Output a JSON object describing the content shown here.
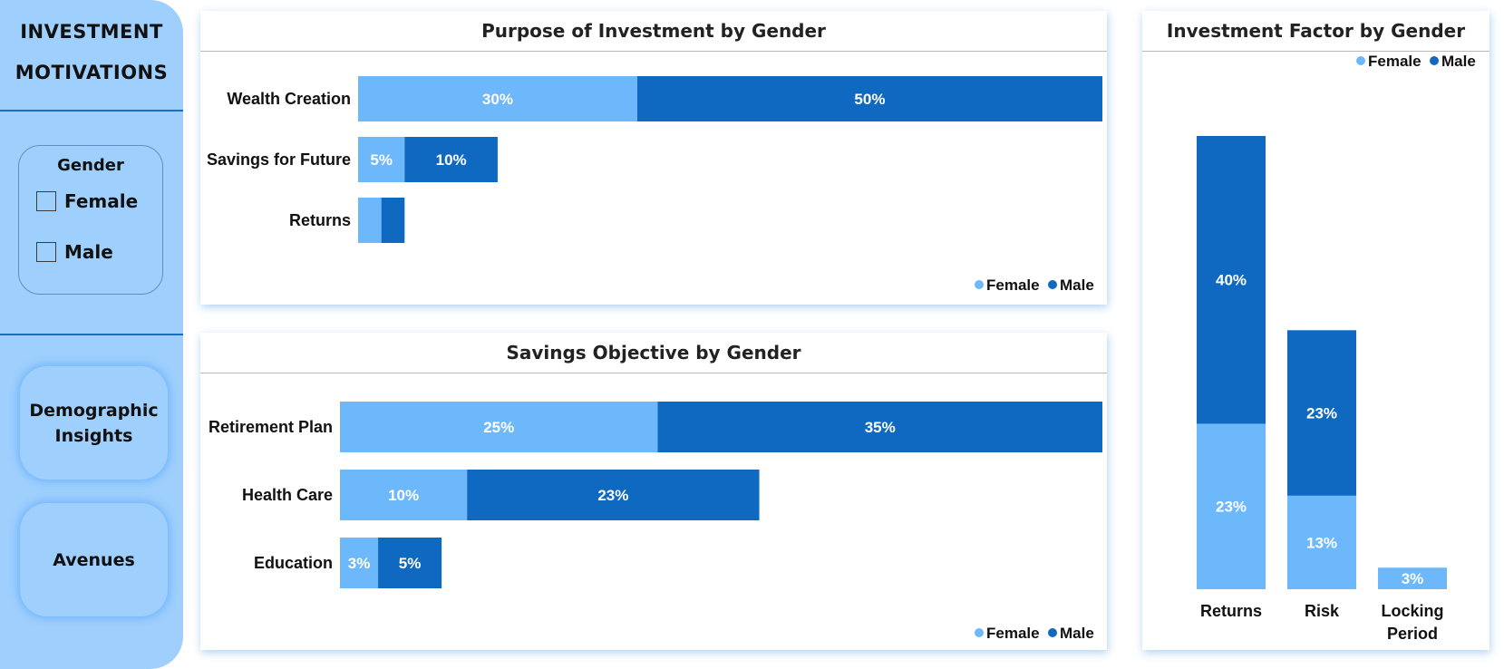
{
  "sidebar": {
    "title_line1": "INVESTMENT",
    "title_line2": "MOTIVATIONS",
    "slicer": {
      "title": "Gender",
      "options": [
        {
          "label": "Female",
          "checked": false
        },
        {
          "label": "Male",
          "checked": false
        }
      ]
    },
    "nav_buttons": [
      {
        "label": "Demographic\nInsights"
      },
      {
        "label": "Avenues"
      }
    ]
  },
  "colors": {
    "female": "#6db8fb",
    "male": "#0f69c0",
    "sidebar": "#9ecffd"
  },
  "charts": {
    "purpose": {
      "title": "Purpose of Investment by Gender"
    },
    "savings": {
      "title": "Savings Objective by Gender"
    },
    "factor": {
      "title": "Investment Factor by Gender"
    }
  },
  "chart_data": [
    {
      "type": "bar",
      "orientation": "horizontal",
      "stacked": true,
      "title": "Purpose of Investment by Gender",
      "categories": [
        "Wealth Creation",
        "Savings for Future",
        "Returns"
      ],
      "series": [
        {
          "name": "Female",
          "values": [
            30,
            5,
            2.5
          ],
          "labels": [
            "30%",
            "5%",
            ""
          ]
        },
        {
          "name": "Male",
          "values": [
            50,
            10,
            2.5
          ],
          "labels": [
            "50%",
            "10%",
            ""
          ]
        }
      ],
      "xlim": [
        0,
        80
      ],
      "legend": "bottom-right",
      "grid": false
    },
    {
      "type": "bar",
      "orientation": "horizontal",
      "stacked": true,
      "title": "Savings Objective by Gender",
      "categories": [
        "Retirement Plan",
        "Health Care",
        "Education"
      ],
      "series": [
        {
          "name": "Female",
          "values": [
            25,
            10,
            3
          ],
          "labels": [
            "25%",
            "10%",
            "3%"
          ]
        },
        {
          "name": "Male",
          "values": [
            35,
            23,
            5
          ],
          "labels": [
            "35%",
            "23%",
            "5%"
          ]
        }
      ],
      "xlim": [
        0,
        60
      ],
      "legend": "bottom-right",
      "grid": false
    },
    {
      "type": "bar",
      "orientation": "vertical",
      "stacked": true,
      "title": "Investment Factor by Gender",
      "categories": [
        "Returns",
        "Risk",
        "Locking\nPeriod"
      ],
      "series": [
        {
          "name": "Female",
          "values": [
            23,
            13,
            3
          ],
          "labels": [
            "23%",
            "13%",
            "3%"
          ]
        },
        {
          "name": "Male",
          "values": [
            40,
            23,
            0
          ],
          "labels": [
            "40%",
            "23%",
            ""
          ]
        }
      ],
      "ylim": [
        0,
        63
      ],
      "legend": "top-right",
      "grid": false
    }
  ]
}
